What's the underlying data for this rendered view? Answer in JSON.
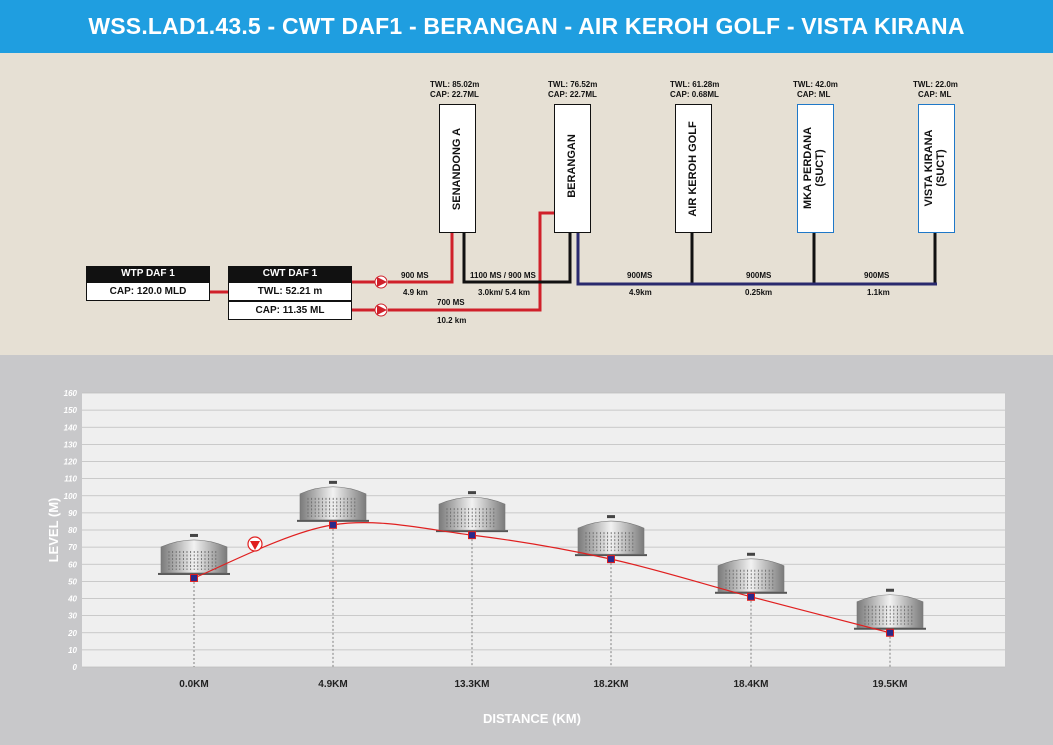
{
  "title": "WSS.LAD1.43.5 - CWT DAF1 - BERANGAN - AIR KEROH GOLF - VISTA KIRANA",
  "sources": {
    "wtp": {
      "name": "WTP DAF 1",
      "cap": "CAP: 120.0 MLD"
    },
    "cwt": {
      "name": "CWT DAF 1",
      "twl": "TWL: 52.21 m",
      "cap": "CAP: 11.35 ML"
    }
  },
  "tanks": [
    {
      "name": "SENANDONG A",
      "twl": "TWL: 85.02m",
      "cap": "CAP: 22.7ML"
    },
    {
      "name": "BERANGAN",
      "twl": "TWL: 76.52m",
      "cap": "CAP: 22.7ML"
    },
    {
      "name": "AIR KEROH GOLF",
      "twl": "TWL: 61.28m",
      "cap": "CAP: 0.68ML"
    },
    {
      "name": "MKA PERDANA (SUCT)",
      "line1": "MKA PERDANA",
      "line2": "(SUCT)",
      "twl": "TWL: 42.0m",
      "cap": "CAP:   ML"
    },
    {
      "name": "VISTA KIRANA (SUCT)",
      "line1": "VISTA KIRANA",
      "line2": "(SUCT)",
      "twl": "TWL: 22.0m",
      "cap": "CAP:   ML"
    }
  ],
  "pipes": {
    "p1_size": "900 MS",
    "p1_len": "4.9 km",
    "p2_size": "1100 MS / 900 MS",
    "p2_len": "3.0km/ 5.4 km",
    "p3_size": "700 MS",
    "p3_len": "10.2 km",
    "p4_size": "900MS",
    "p4_len": "4.9km",
    "p5_size": "900MS",
    "p5_len": "0.25km",
    "p6_size": "900MS",
    "p6_len": "1.1km"
  },
  "colors": {
    "title_bar": "#1f9ee0",
    "pipe_red": "#d0202a",
    "pipe_blue": "#2a2a6e",
    "profile_line": "#e02020",
    "marker": "#2a2a8a"
  },
  "chart_data": {
    "type": "line",
    "xlabel": "DISTANCE (KM)",
    "ylabel": "LEVEL (M)",
    "ylim": [
      0,
      160
    ],
    "yticks": [
      0,
      10,
      20,
      30,
      40,
      50,
      60,
      70,
      80,
      90,
      100,
      110,
      120,
      130,
      140,
      150,
      160
    ],
    "categories": [
      "0.0KM",
      "4.9KM",
      "13.3KM",
      "18.2KM",
      "18.4KM",
      "19.5KM"
    ],
    "values": [
      52,
      83,
      77,
      63,
      41,
      20
    ],
    "grid": true
  }
}
